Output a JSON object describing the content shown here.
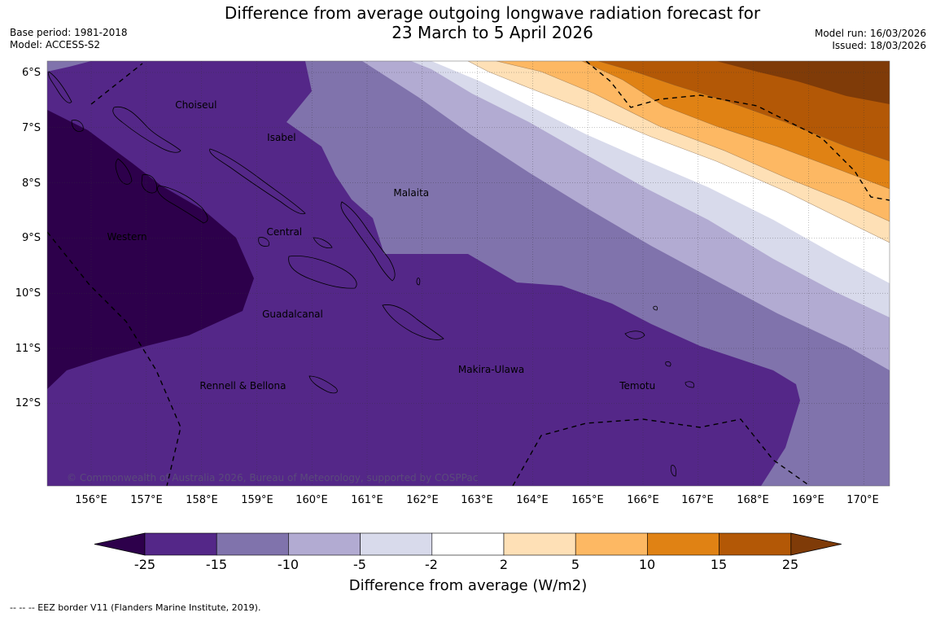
{
  "title": {
    "line1": "Difference from average outgoing longwave radiation forecast for",
    "line2": "23 March to 5 April 2026"
  },
  "meta_left": {
    "base_period": "Base period: 1981-2018",
    "model": "Model: ACCESS-S2"
  },
  "meta_right": {
    "model_run": "Model run: 16/03/2026",
    "issued": "Issued: 18/03/2026"
  },
  "map": {
    "lat_labels": [
      "6°S",
      "7°S",
      "8°S",
      "9°S",
      "10°S",
      "11°S",
      "12°S"
    ],
    "lon_labels": [
      "156°E",
      "157°E",
      "158°E",
      "159°E",
      "160°E",
      "161°E",
      "162°E",
      "163°E",
      "164°E",
      "165°E",
      "166°E",
      "167°E",
      "168°E",
      "169°E",
      "170°E"
    ],
    "regions": [
      {
        "name": "Choiseul",
        "lon": 157.9,
        "lat": -6.6
      },
      {
        "name": "Isabel",
        "lon": 159.45,
        "lat": -7.2
      },
      {
        "name": "Malaita",
        "lon": 161.8,
        "lat": -8.2
      },
      {
        "name": "Central",
        "lon": 159.5,
        "lat": -8.9
      },
      {
        "name": "Western",
        "lon": 156.65,
        "lat": -9.0
      },
      {
        "name": "Guadalcanal",
        "lon": 159.65,
        "lat": -10.4
      },
      {
        "name": "Makira-Ulawa",
        "lon": 163.25,
        "lat": -11.4
      },
      {
        "name": "Rennell & Bellona",
        "lon": 158.75,
        "lat": -11.7
      },
      {
        "name": "Temotu",
        "lon": 165.9,
        "lat": -11.7
      }
    ],
    "copyright": "© Commonwealth of Australia 2026, Bureau of Meteorology, supported by COSPPac"
  },
  "colorbar": {
    "title": "Difference from average (W/m2)",
    "boundaries": [
      "-25",
      "-15",
      "-10",
      "-5",
      "-2",
      "2",
      "5",
      "10",
      "15",
      "25"
    ],
    "colors": [
      "#2d004b",
      "#542788",
      "#8073ac",
      "#b2abd2",
      "#d8daeb",
      "#ffffff",
      "#fee0b6",
      "#fdb863",
      "#e08214",
      "#b35806",
      "#7f3b08"
    ]
  },
  "footer": "--  --  -- EEZ border V11 (Flanders Marine Institute, 2019)."
}
